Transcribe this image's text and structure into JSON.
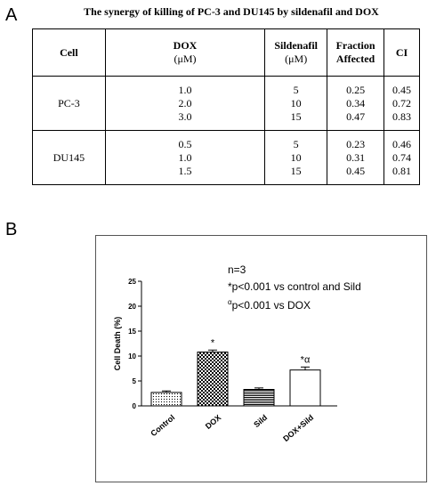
{
  "panels": {
    "a": "A",
    "b": "B"
  },
  "table": {
    "title": "The synergy of killing of PC-3 and DU145 by sildenafil and DOX",
    "headers": {
      "cell": "Cell",
      "dox": "DOX",
      "dox_unit": "(μM)",
      "sild": "Sildenafil",
      "sild_unit": "(μM)",
      "fa_1": "Fraction",
      "fa_2": "Affected",
      "ci": "CI"
    },
    "groups": [
      {
        "cell": "PC-3",
        "dox": [
          "1.0",
          "2.0",
          "3.0"
        ],
        "sild": [
          "5",
          "10",
          "15"
        ],
        "fa": [
          "0.25",
          "0.34",
          "0.47"
        ],
        "ci": [
          "0.45",
          "0.72",
          "0.83"
        ]
      },
      {
        "cell": "DU145",
        "dox": [
          "0.5",
          "1.0",
          "1.5"
        ],
        "sild": [
          "5",
          "10",
          "15"
        ],
        "fa": [
          "0.23",
          "0.31",
          "0.45"
        ],
        "ci": [
          "0.46",
          "0.74",
          "0.81"
        ]
      }
    ]
  },
  "annotations": {
    "n": "n=3",
    "p1": "*p<0.001 vs control and Sild",
    "p2_sup": "α",
    "p2": "p<0.001 vs DOX"
  },
  "chart_data": {
    "type": "bar",
    "categories": [
      "Control",
      "DOX",
      "Sild",
      "DOX+Sild"
    ],
    "values": [
      2.7,
      10.8,
      3.3,
      7.2
    ],
    "errors": [
      0.3,
      0.4,
      0.3,
      0.6
    ],
    "markers": [
      "",
      "*",
      "",
      "*α"
    ],
    "patterns": [
      "dots",
      "checker",
      "hlines",
      "none"
    ],
    "xlabel": "",
    "ylabel": "Cell Death (%)",
    "ylim": [
      0,
      25
    ],
    "yticks": [
      "0",
      "5",
      "10",
      "15",
      "20",
      "25"
    ]
  }
}
